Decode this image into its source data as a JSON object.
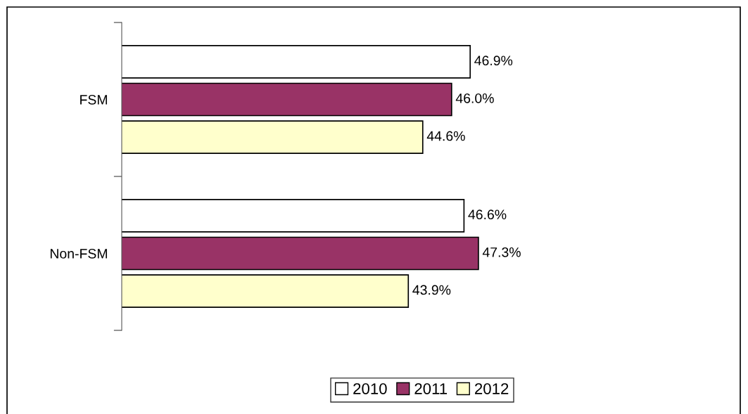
{
  "chart_data": {
    "type": "bar",
    "orientation": "horizontal",
    "categories": [
      "FSM",
      "Non-FSM"
    ],
    "series": [
      {
        "name": "2010",
        "color": "#ffffff",
        "values": [
          46.9,
          46.6
        ],
        "value_labels": [
          "46.9%",
          "46.6%"
        ]
      },
      {
        "name": "2011",
        "color": "#993366",
        "values": [
          46.0,
          47.3
        ],
        "value_labels": [
          "46.0%",
          "47.3%"
        ]
      },
      {
        "name": "2012",
        "color": "#ffffcc",
        "values": [
          44.6,
          43.9
        ],
        "value_labels": [
          "44.6%",
          "43.9%"
        ]
      }
    ],
    "xlim": [
      30,
      60
    ],
    "tick_labels": "y",
    "grid": false,
    "legend": "bottom"
  }
}
